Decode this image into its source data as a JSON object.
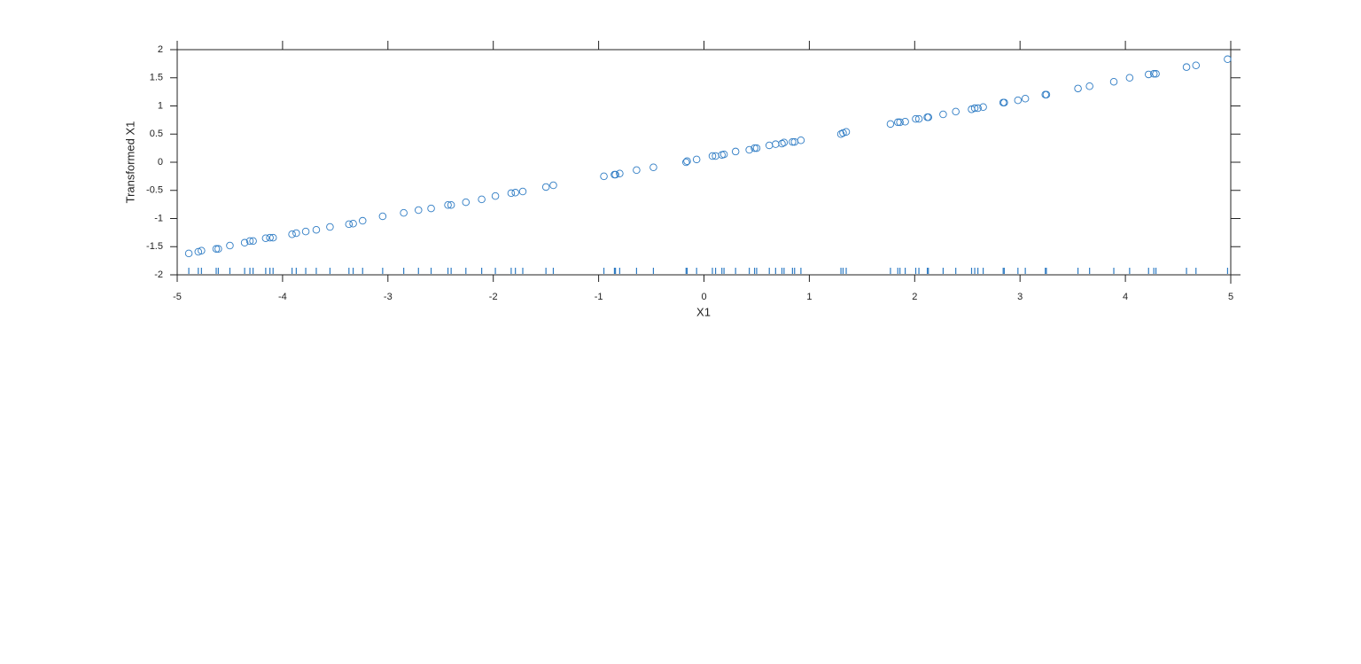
{
  "chart_data": {
    "type": "scatter",
    "xlabel": "X1",
    "ylabel": "Transformed X1",
    "color": "#2f7cc4",
    "rug": true,
    "xlim": [
      -5,
      5
    ],
    "xticks": [
      -5,
      -4,
      -3,
      -2,
      -1,
      0,
      1,
      2,
      3,
      4,
      5
    ],
    "ylim": [
      -2,
      2
    ],
    "yticks": [
      -2,
      -1.5,
      -1,
      -0.5,
      0,
      0.5,
      1,
      1.5,
      2
    ],
    "x": [
      -4.89,
      -4.8,
      -4.77,
      -4.63,
      -4.61,
      -4.5,
      -4.36,
      -4.31,
      -4.28,
      -4.16,
      -4.12,
      -4.09,
      -3.91,
      -3.87,
      -3.78,
      -3.68,
      -3.55,
      -3.37,
      -3.33,
      -3.24,
      -3.05,
      -2.85,
      -2.71,
      -2.59,
      -2.43,
      -2.4,
      -2.26,
      -2.11,
      -1.98,
      -1.83,
      -1.79,
      -1.72,
      -1.5,
      -1.43,
      -0.95,
      -0.85,
      -0.84,
      -0.8,
      -0.64,
      -0.48,
      -0.17,
      -0.16,
      -0.07,
      0.08,
      0.11,
      0.17,
      0.19,
      0.3,
      0.43,
      0.48,
      0.5,
      0.62,
      0.68,
      0.74,
      0.76,
      0.84,
      0.86,
      0.92,
      1.3,
      1.32,
      1.35,
      1.77,
      1.84,
      1.86,
      1.91,
      2.01,
      2.04,
      2.12,
      2.13,
      2.27,
      2.39,
      2.54,
      2.57,
      2.6,
      2.65,
      2.84,
      2.85,
      2.98,
      3.05,
      3.24,
      3.25,
      3.55,
      3.66,
      3.89,
      4.04,
      4.22,
      4.27,
      4.29,
      4.58,
      4.67,
      4.97
    ],
    "values": [
      -1.62,
      -1.59,
      -1.57,
      -1.54,
      -1.54,
      -1.48,
      -1.43,
      -1.4,
      -1.4,
      -1.35,
      -1.34,
      -1.34,
      -1.28,
      -1.26,
      -1.23,
      -1.2,
      -1.15,
      -1.1,
      -1.09,
      -1.04,
      -0.96,
      -0.9,
      -0.85,
      -0.82,
      -0.76,
      -0.76,
      -0.71,
      -0.66,
      -0.6,
      -0.55,
      -0.54,
      -0.52,
      -0.44,
      -0.41,
      -0.25,
      -0.22,
      -0.22,
      -0.2,
      -0.14,
      -0.09,
      0,
      0.02,
      0.05,
      0.11,
      0.11,
      0.13,
      0.14,
      0.19,
      0.22,
      0.25,
      0.25,
      0.3,
      0.32,
      0.33,
      0.35,
      0.36,
      0.36,
      0.39,
      0.5,
      0.52,
      0.54,
      0.68,
      0.71,
      0.71,
      0.72,
      0.77,
      0.77,
      0.8,
      0.8,
      0.85,
      0.9,
      0.94,
      0.96,
      0.96,
      0.98,
      1.06,
      1.06,
      1.1,
      1.13,
      1.2,
      1.2,
      1.31,
      1.35,
      1.43,
      1.5,
      1.56,
      1.57,
      1.57,
      1.69,
      1.72,
      1.83
    ]
  }
}
